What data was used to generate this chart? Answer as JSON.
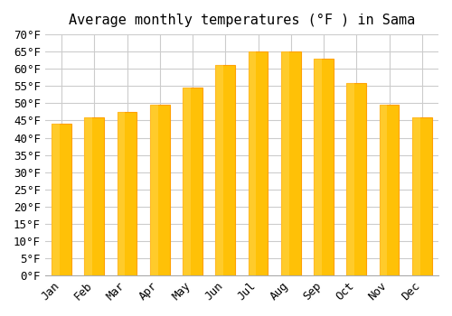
{
  "title": "Average monthly temperatures (°F ) in Sama",
  "months": [
    "Jan",
    "Feb",
    "Mar",
    "Apr",
    "May",
    "Jun",
    "Jul",
    "Aug",
    "Sep",
    "Oct",
    "Nov",
    "Dec"
  ],
  "values": [
    44,
    46,
    47.5,
    49.5,
    54.5,
    61,
    65,
    65,
    63,
    56,
    49.5,
    46
  ],
  "bar_color_face": "#FFC107",
  "bar_color_edge": "#FFA000",
  "ylim": [
    0,
    70
  ],
  "ytick_step": 5,
  "background_color": "#ffffff",
  "grid_color": "#cccccc",
  "title_fontsize": 11,
  "tick_fontsize": 9,
  "font_family": "monospace"
}
